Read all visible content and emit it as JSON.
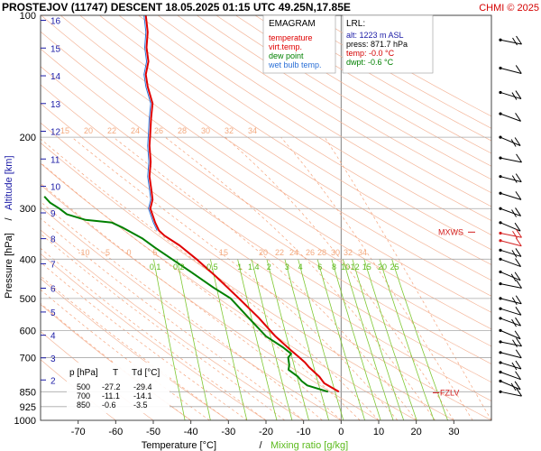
{
  "header": {
    "title": "PROSTEJOV (11747)   DESCENT   18.05.2025 01:15 UTC  49.25N,17.85E",
    "credit": "CHMI © 2025"
  },
  "legend": {
    "title": "EMAGRAM",
    "items": [
      {
        "label": "temperature",
        "color": "#e00000"
      },
      {
        "label": "virt.temp.",
        "color": "#e00000"
      },
      {
        "label": "dew point",
        "color": "#008000"
      },
      {
        "label": "wet bulb temp.",
        "color": "#2a6fd6"
      }
    ]
  },
  "lrl": {
    "title": "LRL:",
    "alt": "alt: 1223 m ASL",
    "press": "press: 871.7 hPa",
    "temp": "temp: -0.0 °C",
    "dwpt": "dwpt: -0.6 °C"
  },
  "levels_table": {
    "headers": [
      "p [hPa]",
      "T",
      "Td [°C]"
    ],
    "rows": [
      [
        "500",
        "-27.2",
        "-29.4"
      ],
      [
        "700",
        "-11.1",
        "-14.1"
      ],
      [
        "850",
        "-0.6",
        "-3.5"
      ]
    ]
  },
  "labels": {
    "mxws": "MXWS",
    "fzlv": "FZLV",
    "xlabel_temp": "Temperature [°C]",
    "xlabel_sep": "/",
    "xlabel_mix": "Mixing ratio [g/kg]",
    "ylabel_p": "Pressure [hPa]",
    "ylabel_sep": "/",
    "ylabel_alt": "Altitude [km]"
  },
  "colors": {
    "temperature": "#e00000",
    "dewpoint": "#008000",
    "wetbulb": "#2a6fd6",
    "dry_adiabat": "#f4b69a",
    "moist_adiabat": "#f6a47c",
    "mixing_ratio": "#7fc832",
    "isobar": "#a8a8a8",
    "altitude": "#1a1aa6",
    "annotation": "#d42020",
    "isotherm_zero": "#808080"
  },
  "chart_data": {
    "type": "line",
    "x_axis": {
      "label": "Temperature [°C]",
      "range": [
        -80,
        40
      ],
      "ticks": [
        -70,
        -60,
        -50,
        -40,
        -30,
        -20,
        -10,
        0,
        10,
        20,
        30
      ]
    },
    "y_axis": {
      "label": "Pressure [hPa]",
      "scale": "log",
      "range": [
        1000,
        100
      ],
      "ticks": [
        100,
        200,
        300,
        400,
        500,
        600,
        700,
        850,
        925,
        1000
      ]
    },
    "altitude_km_ticks": [
      2,
      3,
      4,
      5,
      6,
      7,
      8,
      9,
      10,
      11,
      12,
      13,
      14,
      15,
      16
    ],
    "mixing_ratio_labels": [
      "0.1",
      "0.2",
      "0.5",
      "1",
      "1.4",
      "2",
      "3",
      "4",
      "6",
      "8",
      "10",
      "12",
      "15",
      "20",
      "25"
    ],
    "upper_labels_200": [
      "15",
      "20",
      "22",
      "24",
      "26",
      "28",
      "30",
      "32",
      "34"
    ],
    "upper_labels_380": [
      "-10",
      "-5",
      "0",
      "5",
      "15",
      "20",
      "22",
      "24",
      "26",
      "28",
      "30",
      "32",
      "34"
    ],
    "series": [
      {
        "name": "temperature",
        "points": [
          [
            850,
            -0.6
          ],
          [
            810,
            -4.5
          ],
          [
            780,
            -5.8
          ],
          [
            740,
            -8.5
          ],
          [
            720,
            -9.6
          ],
          [
            700,
            -11.1
          ],
          [
            670,
            -13.5
          ],
          [
            620,
            -17.5
          ],
          [
            560,
            -21.8
          ],
          [
            500,
            -27.2
          ],
          [
            440,
            -33.5
          ],
          [
            400,
            -38.5
          ],
          [
            370,
            -43
          ],
          [
            350,
            -47
          ],
          [
            340,
            -48.5
          ],
          [
            325,
            -49.5
          ],
          [
            315,
            -50
          ],
          [
            300,
            -50.8
          ],
          [
            285,
            -50.2
          ],
          [
            270,
            -50.5
          ],
          [
            250,
            -51
          ],
          [
            230,
            -50.7
          ],
          [
            210,
            -51
          ],
          [
            195,
            -50.8
          ],
          [
            180,
            -50.6
          ],
          [
            165,
            -50.2
          ],
          [
            150,
            -51.5
          ],
          [
            140,
            -52
          ],
          [
            130,
            -51.3
          ],
          [
            120,
            -51.8
          ],
          [
            110,
            -51.5
          ],
          [
            100,
            -52
          ]
        ]
      },
      {
        "name": "dew point",
        "points": [
          [
            850,
            -3.5
          ],
          [
            820,
            -9
          ],
          [
            800,
            -10.5
          ],
          [
            780,
            -11.5
          ],
          [
            750,
            -14
          ],
          [
            730,
            -13.8
          ],
          [
            710,
            -14
          ],
          [
            700,
            -14.1
          ],
          [
            685,
            -13.3
          ],
          [
            660,
            -15.5
          ],
          [
            620,
            -20
          ],
          [
            560,
            -24.5
          ],
          [
            500,
            -29.4
          ],
          [
            470,
            -34
          ],
          [
            430,
            -40
          ],
          [
            400,
            -45
          ],
          [
            375,
            -49.5
          ],
          [
            355,
            -53
          ],
          [
            335,
            -58
          ],
          [
            325,
            -61
          ],
          [
            320,
            -68
          ],
          [
            310,
            -73
          ],
          [
            300,
            -75
          ],
          [
            290,
            -77.5
          ],
          [
            280,
            -79
          ]
        ]
      }
    ],
    "annotations": [
      {
        "label": "MXWS",
        "pressure": 343
      },
      {
        "label": "FZLV",
        "pressure": 855
      }
    ],
    "grid": true
  }
}
